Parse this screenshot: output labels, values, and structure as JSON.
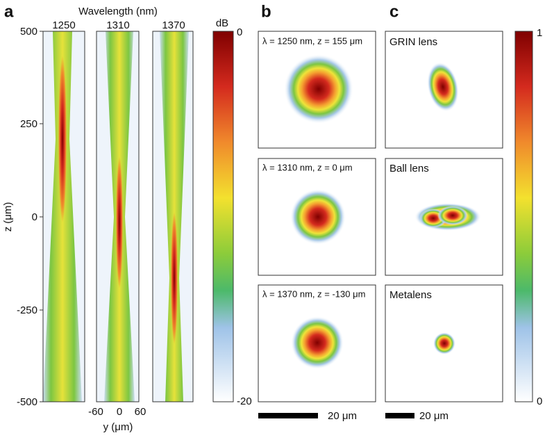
{
  "panel_a": {
    "letter": "a",
    "x_axis_title": "Wavelength (nm)",
    "wavelengths": [
      "1250",
      "1310",
      "1370"
    ],
    "y_axis_title": "z (μm)",
    "y_ticks": [
      "500",
      "250",
      "0",
      "-250",
      "-500"
    ],
    "x_ticks": [
      "-60",
      "0",
      "60"
    ],
    "x_axis_label": "y (μm)",
    "colorbar": {
      "unit": "dB",
      "max": "0",
      "min": "-20"
    }
  },
  "panel_b": {
    "letter": "b",
    "images": [
      "λ = 1250 nm, z = 155 μm",
      "λ = 1310 nm, z = 0 μm",
      "λ = 1370 nm, z = -130 μm"
    ],
    "scale_bar": "20 μm"
  },
  "panel_c": {
    "letter": "c",
    "images": [
      "GRIN lens",
      "Ball lens",
      "Metalens"
    ],
    "scale_bar": "20 μm",
    "colorbar": {
      "max": "1",
      "min": "0"
    }
  }
}
